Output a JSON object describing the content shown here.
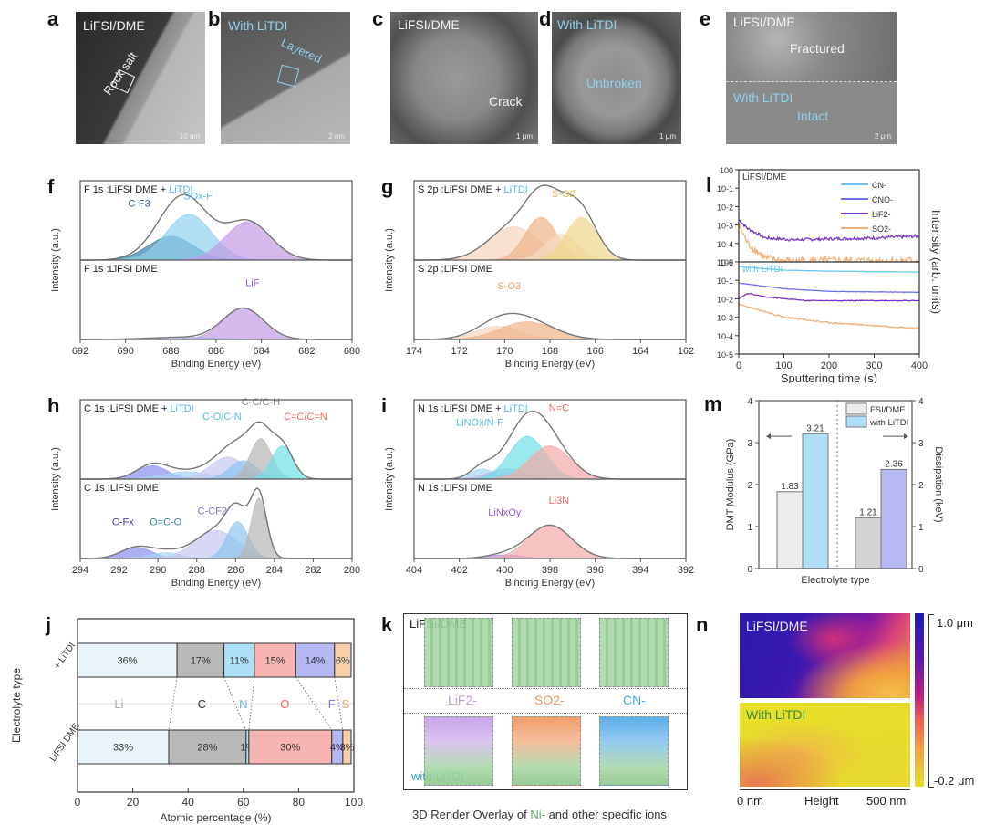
{
  "panel_labels": {
    "a": "a",
    "b": "b",
    "c": "c",
    "d": "d",
    "e": "e",
    "f": "f",
    "g": "g",
    "h": "h",
    "i": "i",
    "j": "j",
    "k": "k",
    "l": "l",
    "m": "m",
    "n": "n"
  },
  "images": {
    "a": {
      "title": "LiFSI/DME",
      "annotation": "Rock salt",
      "scale": "10 nm"
    },
    "b": {
      "title": "With LiTDI",
      "annotation": "Layered",
      "scale": "2 nm"
    },
    "c": {
      "title": "LiFSI/DME",
      "annotation": "Crack",
      "scale": "1 μm"
    },
    "d": {
      "title": "With LiTDI",
      "annotation": "Unbroken",
      "scale": "1 μm"
    },
    "e": {
      "title_top": "LiFSI/DME",
      "annotation_top": "Fractured",
      "title_bottom": "With LiTDI",
      "annotation_bottom": "Intact",
      "scale": "2 μm"
    }
  },
  "colors": {
    "litdi": "#5bb8e0",
    "cf3": "#3a7fa8",
    "sox": "#8fd0ee",
    "lif": "#c39be6",
    "orange": "#f0b48a",
    "yellow": "#f0d58c",
    "gray": "#b5b5b5",
    "cyan": "#6fe0e8",
    "red": "#e86a6a",
    "pink": "#f2aaa8",
    "blue": "#8c8ff0",
    "purple": "#7a35c8",
    "green": "#5aa85a"
  },
  "chart_data": [
    {
      "id": "f",
      "type": "area",
      "xlabel": "Binding Energy (eV)",
      "ylabel": "Intensity (a.u.)",
      "xlim": [
        692,
        680
      ],
      "xticks": [
        692,
        690,
        688,
        686,
        684,
        682,
        680
      ],
      "top": {
        "title_prefix": "F 1s :LiFSI DME + ",
        "title_suffix": "LiTDI",
        "peaks": [
          {
            "name": "C-F3",
            "center": 688.0,
            "height": 0.32,
            "width": 1.0,
            "color": "#3a7fa8"
          },
          {
            "name": "SOx-F",
            "center": 687.2,
            "height": 0.62,
            "width": 1.0,
            "color": "#8fd0ee"
          },
          {
            "name": "LiF",
            "center": 684.6,
            "height": 0.52,
            "width": 1.0,
            "color": "#c39be6"
          }
        ],
        "labels": [
          {
            "text": "C-F3",
            "x": 689.4,
            "y": 0.72,
            "color": "#2f5f8a"
          },
          {
            "text": "SOx-F",
            "x": 686.8,
            "y": 0.82,
            "color": "#5bb8e0"
          }
        ]
      },
      "bottom": {
        "title_prefix": "F 1s :LiFSI DME",
        "title_suffix": "",
        "peaks": [
          {
            "name": "LiF",
            "center": 684.8,
            "height": 0.42,
            "width": 0.9,
            "color": "#c39be6"
          },
          {
            "name": "bg",
            "center": 687.5,
            "height": 0.03,
            "width": 1.5,
            "color": "#a0b0e8"
          }
        ],
        "labels": [
          {
            "text": "LiF",
            "x": 684.4,
            "y": 0.72,
            "color": "#9b59d0"
          }
        ]
      }
    },
    {
      "id": "g",
      "type": "area",
      "xlabel": "Binding Energy (eV)",
      "ylabel": "Intensity (a.u.)",
      "xlim": [
        174,
        162
      ],
      "xticks": [
        174,
        172,
        170,
        168,
        166,
        164,
        162
      ],
      "top": {
        "title_prefix": "S 2p :LiFSI DME + ",
        "title_suffix": "LiTDI",
        "peaks": [
          {
            "name": "a",
            "center": 169.6,
            "height": 0.45,
            "width": 1.1,
            "color": "#f7d4bf"
          },
          {
            "name": "b",
            "center": 168.4,
            "height": 0.58,
            "width": 0.7,
            "color": "#f0b48a"
          },
          {
            "name": "c",
            "center": 167.5,
            "height": 0.35,
            "width": 0.7,
            "color": "#f4dcc0"
          },
          {
            "name": "d",
            "center": 166.6,
            "height": 0.58,
            "width": 0.7,
            "color": "#f0d58c"
          }
        ],
        "labels": [
          {
            "text": "S-O2",
            "x": 167.4,
            "y": 0.85,
            "color": "#e3b850"
          }
        ]
      },
      "bottom": {
        "title_prefix": "S 2p :LiFSI DME",
        "title_suffix": "",
        "peaks": [
          {
            "name": "a",
            "center": 170.3,
            "height": 0.18,
            "width": 1.0,
            "color": "#f7d4bf"
          },
          {
            "name": "b",
            "center": 169.0,
            "height": 0.24,
            "width": 1.2,
            "color": "#f0b48a"
          }
        ],
        "labels": [
          {
            "text": "S-O3",
            "x": 169.8,
            "y": 0.68,
            "color": "#e89a60"
          }
        ]
      }
    },
    {
      "id": "h",
      "type": "area",
      "xlabel": "Binding Energy (eV)",
      "ylabel": "Intensity (a.u.)",
      "xlim": [
        294,
        280
      ],
      "xticks": [
        294,
        292,
        290,
        288,
        286,
        284,
        282,
        280
      ],
      "top": {
        "title_prefix": "C 1s :LiFSI DME + ",
        "title_suffix": "LiTDI",
        "peaks": [
          {
            "name": "CFx",
            "center": 290.3,
            "height": 0.18,
            "width": 0.8,
            "color": "#8c8ff0"
          },
          {
            "name": "bg",
            "center": 288.5,
            "height": 0.1,
            "width": 1.2,
            "color": "#a8d4f4"
          },
          {
            "name": "C-O",
            "center": 286.4,
            "height": 0.3,
            "width": 0.9,
            "color": "#c5c8f2"
          },
          {
            "name": "C-N",
            "center": 285.6,
            "height": 0.25,
            "width": 0.7,
            "color": "#8fc4f0"
          },
          {
            "name": "C-C",
            "center": 284.7,
            "height": 0.55,
            "width": 0.55,
            "color": "#b5b5b5"
          },
          {
            "name": "C=C",
            "center": 283.6,
            "height": 0.45,
            "width": 0.55,
            "color": "#6fe0e8"
          }
        ],
        "labels": [
          {
            "text": "C-O/C-N",
            "x": 286.7,
            "y": 0.8,
            "color": "#5bb8e0"
          },
          {
            "text": "C-C/C-H",
            "x": 284.7,
            "y": 1.0,
            "color": "#888"
          },
          {
            "text": "C=C/C=N",
            "x": 282.4,
            "y": 0.8,
            "color": "#e86a6a"
          }
        ]
      },
      "bottom": {
        "title_prefix": "C 1s :LiFSI DME",
        "title_suffix": "",
        "peaks": [
          {
            "name": "CFx",
            "center": 291.1,
            "height": 0.15,
            "width": 0.8,
            "color": "#8c8ff0"
          },
          {
            "name": "O=C-O",
            "center": 289.6,
            "height": 0.08,
            "width": 0.8,
            "color": "#a8d4f4"
          },
          {
            "name": "C-CF2",
            "center": 287.0,
            "height": 0.38,
            "width": 1.1,
            "color": "#c5c8f2"
          },
          {
            "name": "C-O",
            "center": 285.9,
            "height": 0.5,
            "width": 0.55,
            "color": "#8fc4f0"
          },
          {
            "name": "C-C",
            "center": 284.8,
            "height": 0.82,
            "width": 0.4,
            "color": "#b5b5b5"
          }
        ],
        "labels": [
          {
            "text": "C-Fx",
            "x": 291.8,
            "y": 0.45,
            "color": "#3a3ab0"
          },
          {
            "text": "O=C-O",
            "x": 289.6,
            "y": 0.45,
            "color": "#3a7fa8"
          },
          {
            "text": "C-CF2",
            "x": 287.2,
            "y": 0.6,
            "color": "#7a7ad8"
          }
        ]
      }
    },
    {
      "id": "i",
      "type": "area",
      "xlabel": "Binding Energy (eV)",
      "ylabel": "Intensity (a.u.)",
      "xlim": [
        404,
        392
      ],
      "xticks": [
        404,
        402,
        400,
        398,
        396,
        394,
        392
      ],
      "top": {
        "title_prefix": "N 1s :LiFSI DME + ",
        "title_suffix": "LiTDI",
        "peaks": [
          {
            "name": "a",
            "center": 401.0,
            "height": 0.14,
            "width": 0.5,
            "color": "#a8d4f4"
          },
          {
            "name": "b",
            "center": 399.9,
            "height": 0.14,
            "width": 0.8,
            "color": "#c9b2ee"
          },
          {
            "name": "c",
            "center": 399.0,
            "height": 0.58,
            "width": 0.8,
            "color": "#6fe0e8"
          },
          {
            "name": "d",
            "center": 398.0,
            "height": 0.45,
            "width": 0.9,
            "color": "#f2aaa8"
          }
        ],
        "labels": [
          {
            "text": "LiNOx/N-F",
            "x": 401.1,
            "y": 0.72,
            "color": "#5bb8e0"
          },
          {
            "text": "N=C",
            "x": 397.6,
            "y": 0.92,
            "color": "#e86a6a"
          }
        ]
      },
      "bottom": {
        "title_prefix": "N 1s :LiFSI DME",
        "title_suffix": "",
        "peaks": [
          {
            "name": "a",
            "center": 400.0,
            "height": 0.05,
            "width": 0.8,
            "color": "#b28be8"
          },
          {
            "name": "b",
            "center": 398.0,
            "height": 0.45,
            "width": 0.95,
            "color": "#f2aaa8"
          }
        ],
        "labels": [
          {
            "text": "LiNxOy",
            "x": 400.0,
            "y": 0.58,
            "color": "#9b59d0"
          },
          {
            "text": "Li3N",
            "x": 397.6,
            "y": 0.74,
            "color": "#e86a6a"
          }
        ]
      }
    },
    {
      "id": "l",
      "type": "line",
      "xlabel": "Sputtering time (s)",
      "ylabel": "Intensity (arb. units)",
      "xlim": [
        0,
        400
      ],
      "xticks": [
        0,
        100,
        200,
        300,
        400
      ],
      "ylim_log": [
        -5,
        0
      ],
      "yticks": [
        "10^0",
        "10^-1",
        "10^-2",
        "10^-3",
        "10^-4",
        "10^-5"
      ],
      "legend": [
        {
          "name": "CN-",
          "color": "#6bc6ee"
        },
        {
          "name": "CNO-",
          "color": "#6b72e8"
        },
        {
          "name": "LiF2-",
          "color": "#7a35c8"
        },
        {
          "name": "SO2-",
          "color": "#f0b07a"
        }
      ],
      "top": {
        "title": "LiFSI/DME",
        "series": [
          {
            "name": "LiF2-",
            "color": "#7a35c8",
            "points": [
              [
                0,
                -2.7
              ],
              [
                20,
                -3.2
              ],
              [
                60,
                -3.7
              ],
              [
                120,
                -3.8
              ],
              [
                200,
                -3.75
              ],
              [
                300,
                -3.7
              ],
              [
                400,
                -3.6
              ]
            ],
            "noise": 0.08
          },
          {
            "name": "SO2-",
            "color": "#f0b07a",
            "points": [
              [
                0,
                -3.0
              ],
              [
                20,
                -4.0
              ],
              [
                60,
                -4.8
              ],
              [
                100,
                -4.95
              ],
              [
                400,
                -4.95
              ]
            ],
            "noise": 0.22
          }
        ]
      },
      "bottom": {
        "title": "with LiTDI",
        "series": [
          {
            "name": "CN-",
            "color": "#6bc6ee",
            "points": [
              [
                0,
                -0.25
              ],
              [
                100,
                -0.45
              ],
              [
                200,
                -0.5
              ],
              [
                400,
                -0.55
              ]
            ],
            "noise": 0.01
          },
          {
            "name": "CNO-",
            "color": "#6b72e8",
            "points": [
              [
                0,
                -1.15
              ],
              [
                100,
                -1.45
              ],
              [
                200,
                -1.6
              ],
              [
                400,
                -1.65
              ]
            ],
            "noise": 0.01
          },
          {
            "name": "LiF2-",
            "color": "#7a35c8",
            "points": [
              [
                0,
                -2.0
              ],
              [
                20,
                -1.7
              ],
              [
                60,
                -1.9
              ],
              [
                150,
                -2.1
              ],
              [
                400,
                -2.1
              ]
            ],
            "noise": 0.02
          },
          {
            "name": "SO2-",
            "color": "#f0b07a",
            "points": [
              [
                0,
                -2.3
              ],
              [
                100,
                -3.0
              ],
              [
                200,
                -3.3
              ],
              [
                400,
                -3.6
              ]
            ],
            "noise": 0.04
          }
        ]
      }
    },
    {
      "id": "m",
      "type": "bar",
      "xlabel": "Electrolyte type",
      "ylabel_left": "DMT Modulus (GPa)",
      "ylabel_right": "Dissipation (keV)",
      "ylim": [
        0,
        4
      ],
      "yticks": [
        0,
        1,
        2,
        3,
        4
      ],
      "legend": [
        {
          "name": "FSI/DME",
          "color": "#ececec"
        },
        {
          "name": "with LiTDI",
          "color": "#b0ddf7"
        }
      ],
      "groups": [
        {
          "axis": "left",
          "bars": [
            {
              "name": "FSI/DME",
              "value": 1.83,
              "label": "1.83",
              "color": "#ececec"
            },
            {
              "name": "with LiTDI",
              "value": 3.21,
              "label": "3.21",
              "color": "#b0ddf7"
            }
          ]
        },
        {
          "axis": "right",
          "bars": [
            {
              "name": "FSI/DME",
              "value": 1.21,
              "label": "1.21",
              "color": "#d4d4d4"
            },
            {
              "name": "with LiTDI",
              "value": 2.36,
              "label": "2.36",
              "color": "#b7b9f2"
            }
          ]
        }
      ]
    },
    {
      "id": "j",
      "type": "bar",
      "orientation": "horizontal-stacked",
      "xlabel": "Atomic percentage (%)",
      "ylabel": "Electrolyte type",
      "xlim": [
        0,
        100
      ],
      "xticks": [
        0,
        20,
        40,
        60,
        80,
        100
      ],
      "elements": [
        {
          "name": "Li",
          "color": "#eaf4fb",
          "text": "#aaa"
        },
        {
          "name": "C",
          "color": "#b8b8b8",
          "text": "#333"
        },
        {
          "name": "N",
          "color": "#aee0f8",
          "text": "#5bb8e0"
        },
        {
          "name": "O",
          "color": "#f6b4b2",
          "text": "#e86a6a"
        },
        {
          "name": "F",
          "color": "#b6b8f4",
          "text": "#7a7ae0"
        },
        {
          "name": "S",
          "color": "#f7cfa8",
          "text": "#e8a060"
        }
      ],
      "rows": [
        {
          "name": "+ LiTDI",
          "values": [
            36,
            17,
            11,
            15,
            14,
            6
          ],
          "labels": [
            "36%",
            "17%",
            "11%",
            "15%",
            "14%",
            "6%"
          ]
        },
        {
          "name": "LiFSI DME",
          "values": [
            33,
            28,
            1,
            30,
            4,
            3
          ],
          "labels": [
            "33%",
            "28%",
            "1%",
            "30%",
            "4%",
            "3%"
          ]
        }
      ]
    }
  ],
  "panel_k": {
    "top_label": "LiFSI/DME",
    "bottom_label": "with LiTDI",
    "ions": [
      {
        "name": "LiF2-",
        "color": "#c39be6"
      },
      {
        "name": "SO2-",
        "color": "#f0925a"
      },
      {
        "name": "CN-",
        "color": "#4aa6e8"
      }
    ],
    "caption_prefix": "3D Render Overlay of ",
    "caption_highlight": "Ni-",
    "caption_suffix": " and other specific ions"
  },
  "panel_n": {
    "top_label": "LiFSI/DME",
    "bottom_label": "With LiTDI",
    "colorbar_max": "1.0 μm",
    "colorbar_min": "-0.2 μm",
    "x_start": "0 nm",
    "x_mid": "Height",
    "x_end": "500 nm"
  }
}
